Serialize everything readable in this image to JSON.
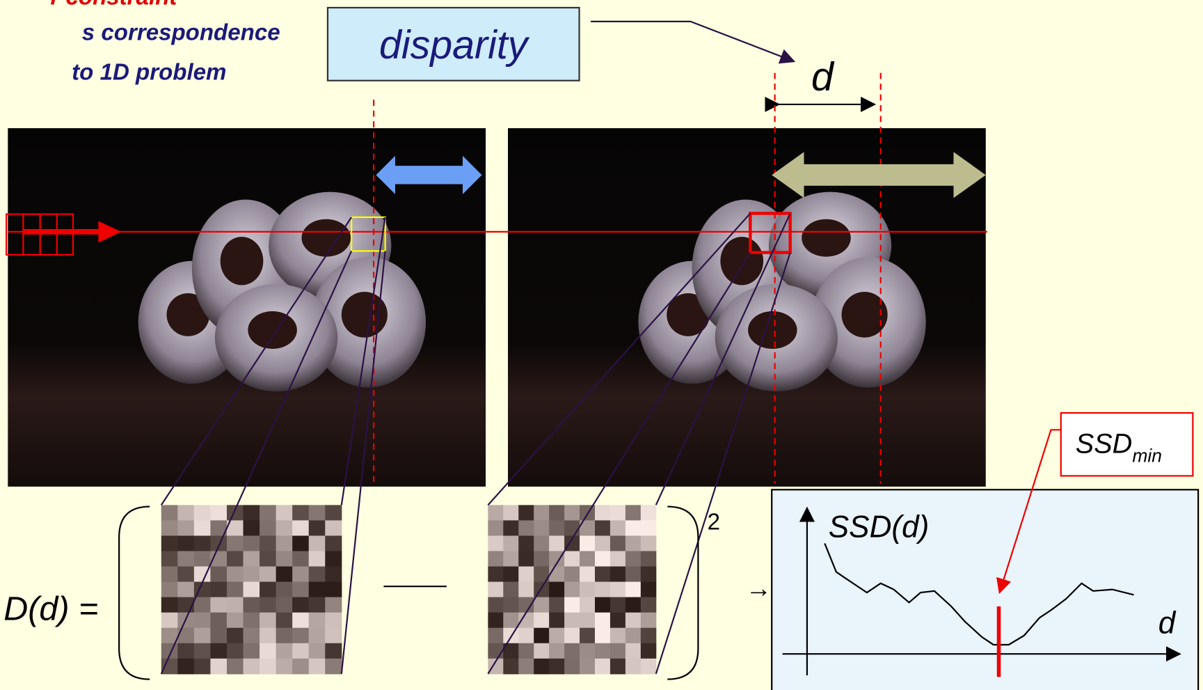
{
  "header": {
    "lines": [
      "r constraint",
      "s correspondence",
      "to 1D problem"
    ]
  },
  "labels": {
    "disparity": "disparity",
    "d_top": "d",
    "ssd_min": "SSD",
    "ssd_min_sub": "min",
    "graph_y": "SSD(d)",
    "graph_x": "d",
    "equation_lhs": "D(d) =",
    "exponent": "2",
    "arrow": "→"
  }
}
